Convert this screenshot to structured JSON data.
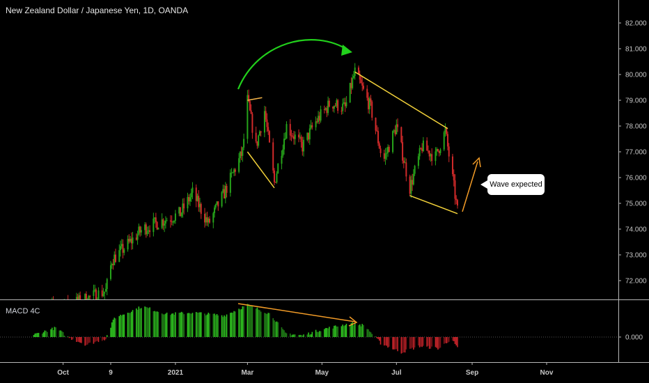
{
  "header": {
    "title": "New Zealand Dollar / Japanese Yen, 1D, OANDA"
  },
  "annotations": {
    "callout": "Wave expected",
    "macd_label": "MACD 4C"
  },
  "colors": {
    "up": "#26a41a",
    "down": "#d12a2a",
    "trend": "#f2d13a",
    "arrow_orange": "#f39c27",
    "arc_green": "#22d11c",
    "hist_up": "#2ec21f",
    "hist_down": "#c8242a"
  },
  "chart_data": [
    {
      "type": "candlestick",
      "title": "New Zealand Dollar / Japanese Yen, 1D, OANDA",
      "y_axis": {
        "ticks": [
          "72.000",
          "73.000",
          "74.000",
          "75.000",
          "76.000",
          "77.000",
          "78.000",
          "79.000",
          "80.000",
          "81.000",
          "82.000"
        ],
        "range": [
          71.5,
          82.5
        ]
      },
      "x_axis": {
        "ticks": [
          "Oct",
          "9",
          "2021",
          "Mar",
          "May",
          "Jul",
          "Sep",
          "Nov"
        ]
      },
      "path": [
        [
          "2020-09-10",
          70.8
        ],
        [
          "2020-10-15",
          71.2
        ],
        [
          "2020-11-05",
          71.6
        ],
        [
          "2020-11-10",
          72.8
        ],
        [
          "2020-11-25",
          73.5
        ],
        [
          "2020-12-05",
          74.0
        ],
        [
          "2020-12-20",
          74.3
        ],
        [
          "2021-01-05",
          74.6
        ],
        [
          "2021-01-15",
          75.4
        ],
        [
          "2021-01-28",
          74.2
        ],
        [
          "2021-02-10",
          75.4
        ],
        [
          "2021-02-25",
          77.0
        ],
        [
          "2021-03-01",
          79.0
        ],
        [
          "2021-03-08",
          77.2
        ],
        [
          "2021-03-15",
          78.6
        ],
        [
          "2021-03-23",
          75.8
        ],
        [
          "2021-04-02",
          78.0
        ],
        [
          "2021-04-15",
          77.2
        ],
        [
          "2021-04-25",
          78.1
        ],
        [
          "2021-05-08",
          78.9
        ],
        [
          "2021-05-20",
          78.7
        ],
        [
          "2021-05-28",
          80.1
        ],
        [
          "2021-06-10",
          78.7
        ],
        [
          "2021-06-20",
          76.6
        ],
        [
          "2021-07-01",
          78.0
        ],
        [
          "2021-07-12",
          75.6
        ],
        [
          "2021-07-22",
          77.2
        ],
        [
          "2021-08-02",
          76.8
        ],
        [
          "2021-08-10",
          77.8
        ],
        [
          "2021-08-20",
          74.7
        ]
      ],
      "trendlines": [
        {
          "from": [
            "2021-03-01",
            79.0
          ],
          "to": [
            "2021-03-13",
            79.1
          ],
          "color": "orange"
        },
        {
          "from": [
            "2021-03-01",
            77.0
          ],
          "to": [
            "2021-03-23",
            75.6
          ],
          "color": "yellow"
        },
        {
          "from": [
            "2021-05-28",
            80.1
          ],
          "to": [
            "2021-08-12",
            77.9
          ],
          "color": "yellow"
        },
        {
          "from": [
            "2021-07-12",
            75.3
          ],
          "to": [
            "2021-08-20",
            74.6
          ],
          "color": "yellow"
        }
      ]
    },
    {
      "type": "histogram",
      "title": "MACD 4C",
      "y_axis": {
        "ticks": [
          "0.000"
        ]
      },
      "envelope": [
        [
          "2020-09-05",
          0.02
        ],
        [
          "2020-09-25",
          0.12
        ],
        [
          "2020-10-05",
          0.0
        ],
        [
          "2020-10-20",
          -0.1
        ],
        [
          "2020-11-05",
          -0.02
        ],
        [
          "2020-11-12",
          0.25
        ],
        [
          "2020-12-05",
          0.4
        ],
        [
          "2020-12-25",
          0.3
        ],
        [
          "2021-01-15",
          0.32
        ],
        [
          "2021-02-10",
          0.28
        ],
        [
          "2021-03-01",
          0.42
        ],
        [
          "2021-03-20",
          0.3
        ],
        [
          "2021-04-01",
          0.05
        ],
        [
          "2021-04-15",
          0.02
        ],
        [
          "2021-05-01",
          0.1
        ],
        [
          "2021-05-25",
          0.18
        ],
        [
          "2021-06-05",
          0.15
        ],
        [
          "2021-06-18",
          -0.08
        ],
        [
          "2021-07-05",
          -0.2
        ],
        [
          "2021-07-20",
          -0.12
        ],
        [
          "2021-08-05",
          -0.15
        ],
        [
          "2021-08-15",
          -0.02
        ],
        [
          "2021-08-22",
          -0.2
        ]
      ]
    }
  ]
}
